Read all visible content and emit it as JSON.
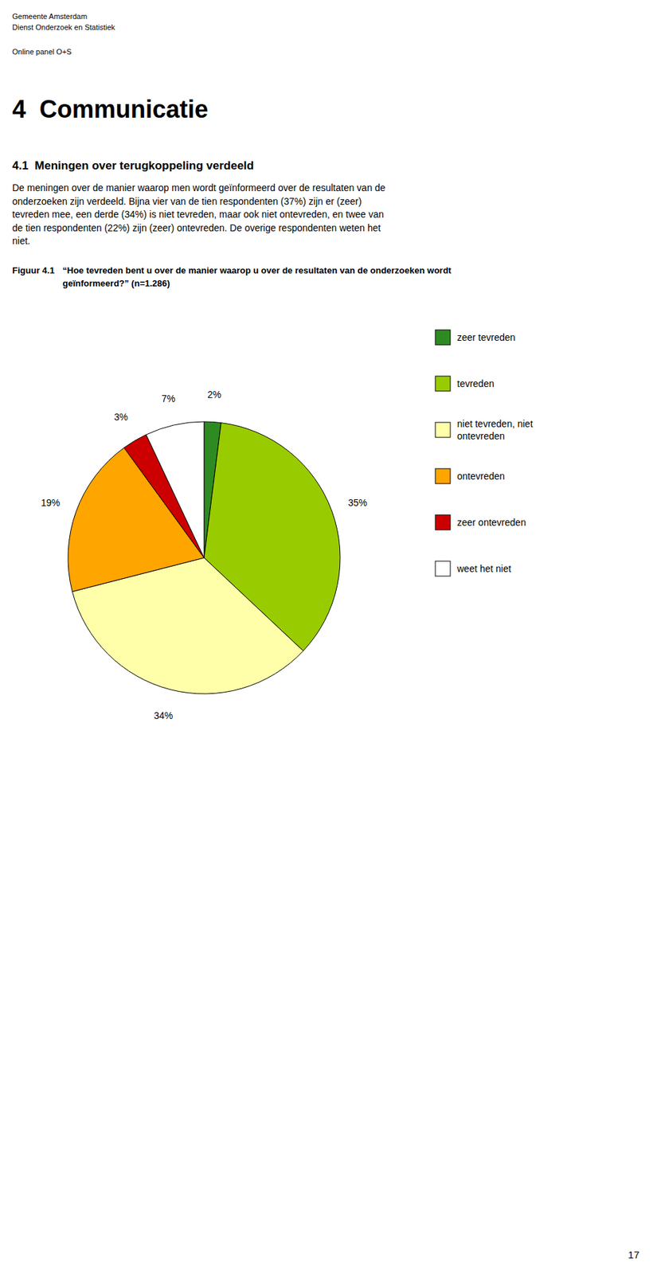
{
  "page": {
    "header_lines": [
      "Gemeente Amsterdam",
      "Dienst Onderzoek en Statistiek"
    ],
    "subheader": "Online panel O+S",
    "chapter_title": "4  Communicatie",
    "section_title": "4.1  Meningen over terugkoppeling verdeeld",
    "body_lines": [
      "De meningen over de manier waarop men wordt geïnformeerd over de resultaten van de",
      "onderzoeken zijn verdeeld. Bijna vier van de tien respondenten (37%) zijn er (zeer)",
      "tevreden mee, een derde (34%) is niet tevreden, maar ook niet ontevreden, en twee van",
      "de tien respondenten (22%) zijn (zeer) ontevreden. De overige respondenten weten het",
      "niet."
    ],
    "page_number": "17"
  },
  "chart_data": {
    "type": "pie",
    "title": "Figuur 4.1",
    "subtitle": [
      "  “Hoe tevreden bent u over de manier waarop u over de resultaten van de onderzoeken wordt",
      "  geïnformeerd?” (n=1.286)"
    ],
    "categories": [
      "zeer tevreden",
      "tevreden",
      "niet tevreden, niet\nontevreden",
      "ontevreden",
      "zeer ontevreden",
      "weet het niet"
    ],
    "values": [
      2,
      35,
      34,
      19,
      3,
      7
    ],
    "value_labels": [
      "2%",
      "35%",
      "34%",
      "19%",
      "3%",
      "7%"
    ],
    "colors": [
      "#2E8B22",
      "#99CC00",
      "#FFFFAA",
      "#FFA500",
      "#CC0000",
      "#FFFFFF"
    ],
    "data_labels": true,
    "legend": "right"
  }
}
